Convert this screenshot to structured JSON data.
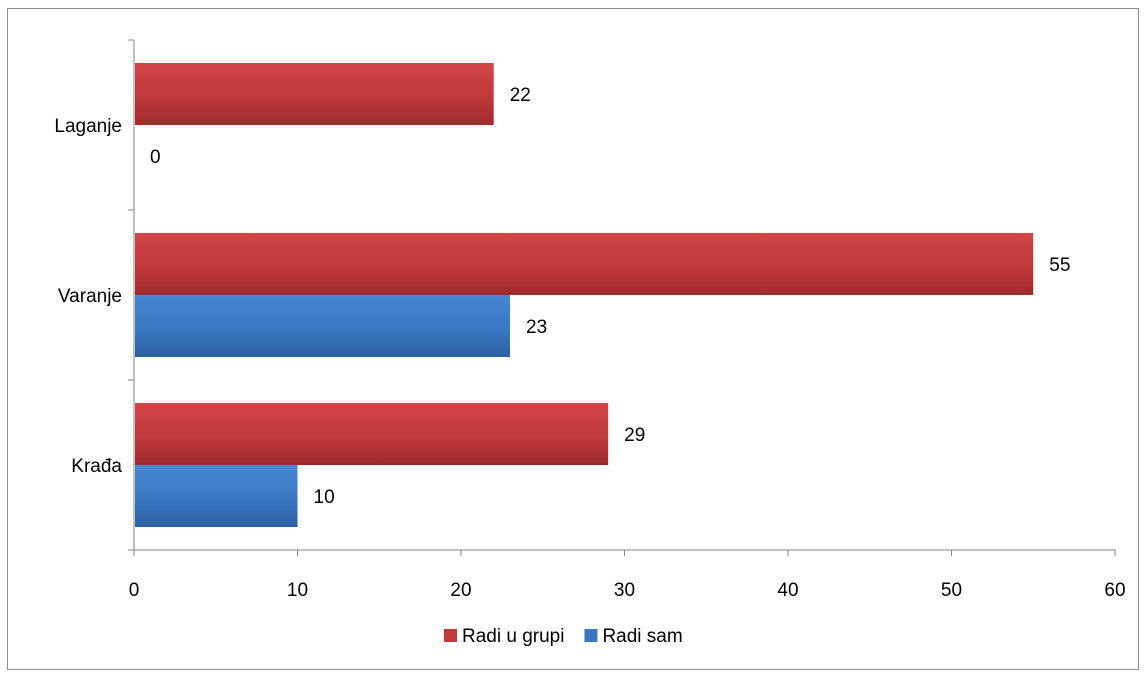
{
  "chart_data": {
    "type": "bar",
    "orientation": "horizontal",
    "categories": [
      "Laganje",
      "Varanje",
      "Krađa"
    ],
    "series": [
      {
        "name": "Radi u grupi",
        "values": [
          22,
          55,
          29
        ],
        "color": "#c0393b"
      },
      {
        "name": "Radi sam",
        "values": [
          0,
          23,
          10
        ],
        "color": "#3a78c3"
      }
    ],
    "xlim": [
      0,
      60
    ],
    "xticks": [
      "0",
      "10",
      "20",
      "30",
      "40",
      "50",
      "60"
    ],
    "grid": false,
    "data_labels": true,
    "legend_position": "bottom"
  }
}
